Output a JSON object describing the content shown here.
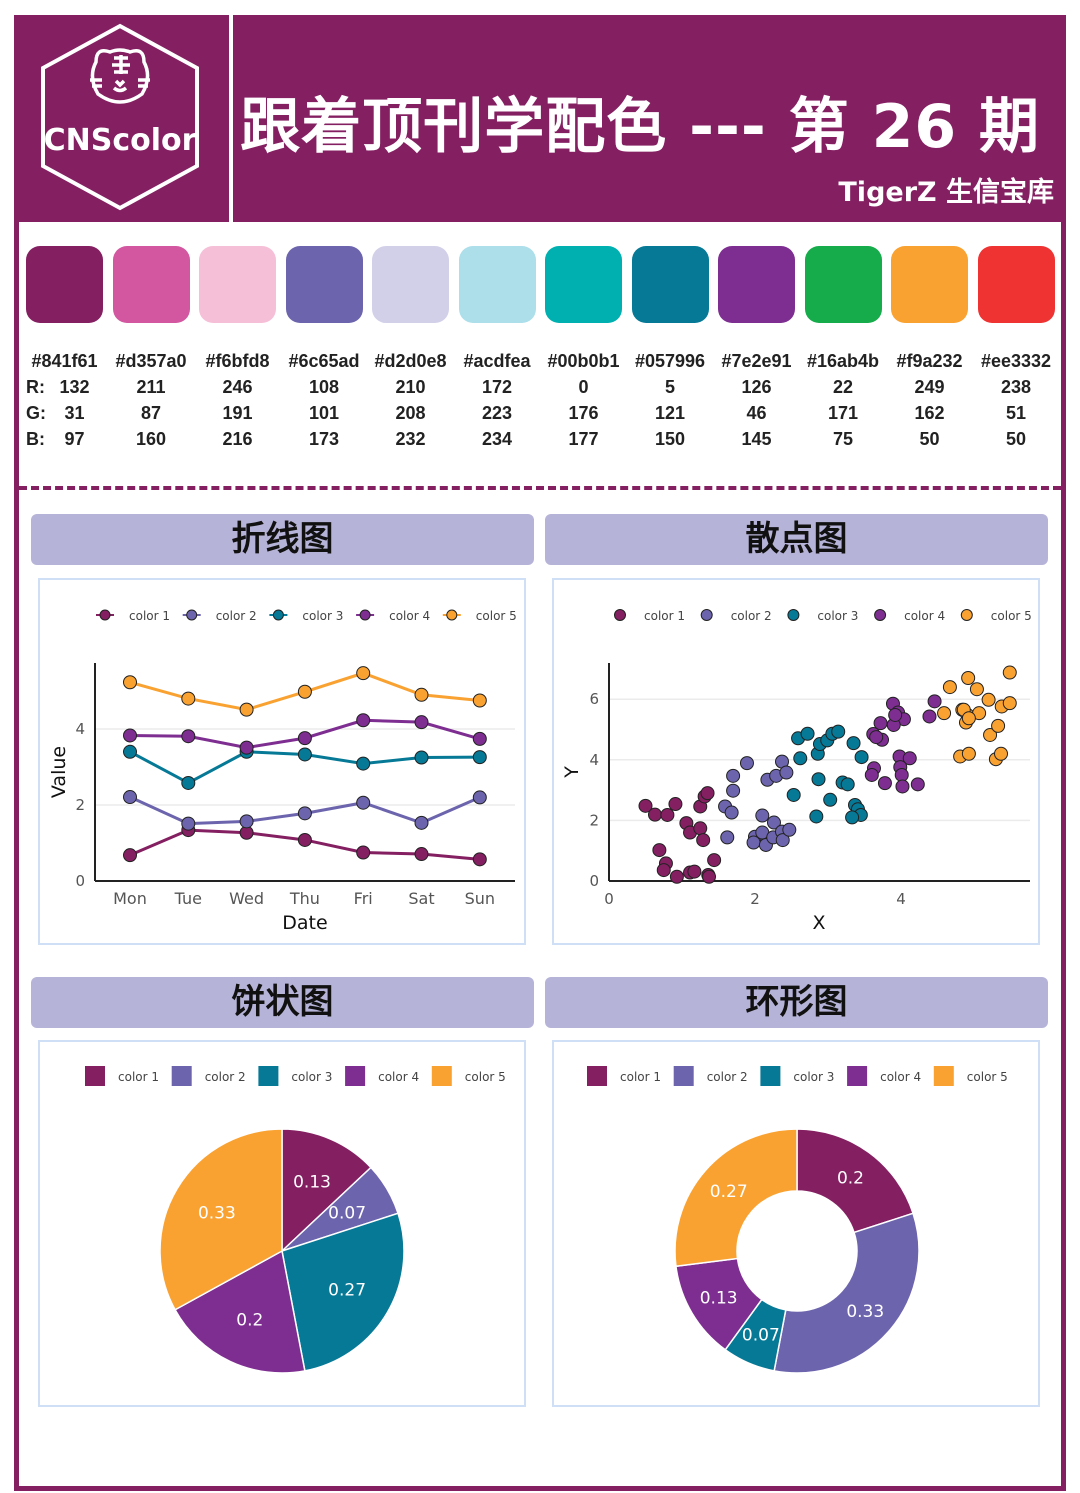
{
  "header": {
    "logo_text": "CNScolor",
    "title": "跟着顶刊学配色 --- 第 26 期",
    "subtitle": "TigerZ 生信宝库"
  },
  "palette": [
    {
      "hex": "#841f61",
      "r": "132",
      "g": "31",
      "b": "97"
    },
    {
      "hex": "#d357a0",
      "r": "211",
      "g": "87",
      "b": "160"
    },
    {
      "hex": "#f6bfd8",
      "r": "246",
      "g": "191",
      "b": "216"
    },
    {
      "hex": "#6c65ad",
      "r": "108",
      "g": "101",
      "b": "173"
    },
    {
      "hex": "#d2d0e8",
      "r": "210",
      "g": "208",
      "b": "232"
    },
    {
      "hex": "#acdfea",
      "r": "172",
      "g": "223",
      "b": "234"
    },
    {
      "hex": "#00b0b1",
      "r": "0",
      "g": "176",
      "b": "177"
    },
    {
      "hex": "#057996",
      "r": "5",
      "g": "121",
      "b": "150"
    },
    {
      "hex": "#7e2e91",
      "r": "126",
      "g": "46",
      "b": "145"
    },
    {
      "hex": "#16ab4b",
      "r": "22",
      "g": "171",
      "b": "75"
    },
    {
      "hex": "#f9a232",
      "r": "249",
      "g": "162",
      "b": "50"
    },
    {
      "hex": "#ee3332",
      "r": "238",
      "g": "51",
      "b": "50"
    }
  ],
  "rgb_labels": {
    "r": "R:",
    "g": "G:",
    "b": "B:"
  },
  "panels": {
    "line": "折线图",
    "scatter": "散点图",
    "pie": "饼状图",
    "donut": "环形图"
  },
  "series_colors": [
    "#841f61",
    "#6c65ad",
    "#057996",
    "#7e2e91",
    "#f9a232"
  ],
  "chart_data": [
    {
      "type": "line",
      "xlabel": "Date",
      "ylabel": "Value",
      "ylim": [
        0,
        5.6
      ],
      "yticks": [
        "0",
        "2",
        "4"
      ],
      "grid": true,
      "legend": "top",
      "categories": [
        "Mon",
        "Tue",
        "Wed",
        "Thu",
        "Fri",
        "Sat",
        "Sun"
      ],
      "series": [
        {
          "name": "color 1",
          "values": [
            0.68,
            1.34,
            1.27,
            1.08,
            0.75,
            0.71,
            0.57
          ]
        },
        {
          "name": "color 2",
          "values": [
            2.21,
            1.51,
            1.57,
            1.78,
            2.06,
            1.53,
            2.2
          ]
        },
        {
          "name": "color 3",
          "values": [
            3.4,
            2.58,
            3.4,
            3.33,
            3.09,
            3.25,
            3.26
          ]
        },
        {
          "name": "color 4",
          "values": [
            3.83,
            3.81,
            3.51,
            3.76,
            4.23,
            4.18,
            3.74
          ]
        },
        {
          "name": "color 5",
          "values": [
            5.23,
            4.8,
            4.51,
            4.98,
            5.47,
            4.9,
            4.75
          ]
        }
      ]
    },
    {
      "type": "scatter",
      "xlabel": "X",
      "ylabel": "Y",
      "xlim": [
        0,
        5.7
      ],
      "ylim": [
        0,
        7.2
      ],
      "xticks": [
        "0",
        "2",
        "4"
      ],
      "yticks": [
        "0",
        "2",
        "4",
        "6"
      ],
      "grid": true,
      "legend": "top",
      "series": [
        {
          "name": "color 1",
          "points": [
            [
              0.5,
              2.48
            ],
            [
              0.63,
              2.19
            ],
            [
              0.8,
              2.18
            ],
            [
              0.91,
              2.54
            ],
            [
              1.06,
              1.91
            ],
            [
              1.11,
              1.6
            ],
            [
              1.25,
              2.46
            ],
            [
              1.31,
              2.79
            ],
            [
              1.35,
              2.9
            ],
            [
              1.25,
              1.74
            ],
            [
              1.29,
              1.35
            ],
            [
              0.69,
              1.02
            ],
            [
              0.78,
              0.58
            ],
            [
              0.75,
              0.36
            ],
            [
              0.93,
              0.14
            ],
            [
              1.11,
              0.28
            ],
            [
              1.17,
              0.31
            ],
            [
              1.36,
              0.2
            ],
            [
              1.37,
              0.14
            ],
            [
              1.44,
              0.69
            ]
          ]
        },
        {
          "name": "color 2",
          "points": [
            [
              1.89,
              3.89
            ],
            [
              1.7,
              3.47
            ],
            [
              1.7,
              2.98
            ],
            [
              1.59,
              2.46
            ],
            [
              1.68,
              2.26
            ],
            [
              1.62,
              1.44
            ],
            [
              2.17,
              3.34
            ],
            [
              2.29,
              3.47
            ],
            [
              2.37,
              3.94
            ],
            [
              2.43,
              3.58
            ],
            [
              2.1,
              2.16
            ],
            [
              2.26,
              1.93
            ],
            [
              2.0,
              1.46
            ],
            [
              1.98,
              1.27
            ],
            [
              2.1,
              1.6
            ],
            [
              2.15,
              1.19
            ],
            [
              2.25,
              1.44
            ],
            [
              2.37,
              1.63
            ],
            [
              2.38,
              1.35
            ],
            [
              2.47,
              1.69
            ]
          ]
        },
        {
          "name": "color 3",
          "points": [
            [
              2.59,
              4.71
            ],
            [
              2.72,
              4.86
            ],
            [
              2.62,
              4.05
            ],
            [
              2.86,
              4.2
            ],
            [
              2.89,
              4.52
            ],
            [
              2.99,
              4.64
            ],
            [
              3.06,
              4.86
            ],
            [
              3.14,
              4.93
            ],
            [
              3.35,
              4.55
            ],
            [
              3.46,
              4.09
            ],
            [
              2.53,
              2.84
            ],
            [
              2.87,
              3.36
            ],
            [
              3.03,
              2.68
            ],
            [
              2.84,
              2.13
            ],
            [
              3.2,
              3.25
            ],
            [
              3.27,
              3.19
            ],
            [
              3.37,
              2.51
            ],
            [
              3.41,
              2.37
            ],
            [
              3.45,
              2.18
            ],
            [
              3.33,
              2.1
            ]
          ]
        },
        {
          "name": "color 4",
          "points": [
            [
              3.89,
              5.85
            ],
            [
              3.96,
              5.56
            ],
            [
              4.04,
              5.34
            ],
            [
              3.9,
              5.15
            ],
            [
              3.72,
              5.21
            ],
            [
              3.62,
              4.85
            ],
            [
              3.74,
              4.66
            ],
            [
              4.39,
              5.43
            ],
            [
              4.46,
              5.93
            ],
            [
              3.98,
              4.11
            ],
            [
              4.12,
              4.05
            ],
            [
              3.99,
              3.76
            ],
            [
              4.01,
              3.5
            ],
            [
              4.02,
              3.12
            ],
            [
              3.63,
              3.72
            ],
            [
              3.6,
              3.5
            ],
            [
              3.78,
              3.23
            ],
            [
              4.23,
              3.19
            ],
            [
              3.66,
              4.75
            ],
            [
              3.92,
              5.48
            ]
          ]
        },
        {
          "name": "color 5",
          "points": [
            [
              4.67,
              6.4
            ],
            [
              4.92,
              6.7
            ],
            [
              5.04,
              6.33
            ],
            [
              5.2,
              5.98
            ],
            [
              5.38,
              5.76
            ],
            [
              5.49,
              6.88
            ],
            [
              5.49,
              5.87
            ],
            [
              4.59,
              5.54
            ],
            [
              4.84,
              5.65
            ],
            [
              4.91,
              5.48
            ],
            [
              4.89,
              5.23
            ],
            [
              5.07,
              5.54
            ],
            [
              5.22,
              4.82
            ],
            [
              5.33,
              5.12
            ],
            [
              4.81,
              4.11
            ],
            [
              4.93,
              4.2
            ],
            [
              5.3,
              4.02
            ],
            [
              5.37,
              4.2
            ],
            [
              4.86,
              5.65
            ],
            [
              4.93,
              5.37
            ]
          ]
        }
      ]
    },
    {
      "type": "pie",
      "legend": "top",
      "categories": [
        "color 1",
        "color 2",
        "color 3",
        "color 4",
        "color 5"
      ],
      "values": [
        0.13,
        0.07,
        0.27,
        0.2,
        0.33
      ],
      "labels": [
        "0.13",
        "0.07",
        "0.27",
        "0.2",
        "0.33"
      ]
    },
    {
      "type": "pie",
      "donut": true,
      "legend": "top",
      "categories": [
        "color 1",
        "color 2",
        "color 3",
        "color 4",
        "color 5"
      ],
      "values": [
        0.2,
        0.33,
        0.07,
        0.13,
        0.27
      ],
      "labels": [
        "0.2",
        "0.33",
        "0.07",
        "0.13",
        "0.27"
      ]
    }
  ]
}
